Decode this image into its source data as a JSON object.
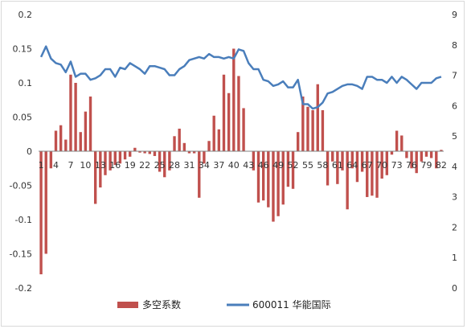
{
  "chart_data": {
    "type": "bar+line",
    "title": "",
    "x": [
      1,
      2,
      3,
      4,
      5,
      6,
      7,
      8,
      9,
      10,
      11,
      12,
      13,
      14,
      15,
      16,
      17,
      18,
      19,
      20,
      21,
      22,
      23,
      24,
      25,
      26,
      27,
      28,
      29,
      30,
      31,
      32,
      33,
      34,
      35,
      36,
      37,
      38,
      39,
      40,
      41,
      42,
      43,
      44,
      45,
      46,
      47,
      48,
      49,
      50,
      51,
      52,
      53,
      54,
      55,
      56,
      57,
      58,
      59,
      60,
      61,
      62,
      63,
      64,
      65,
      66,
      67,
      68,
      69,
      70,
      71,
      72,
      73,
      74,
      75,
      76,
      77,
      78,
      79,
      80,
      81,
      82
    ],
    "x_tick_labels": [
      "1",
      "4",
      "7",
      "10",
      "13",
      "16",
      "19",
      "22",
      "25",
      "28",
      "31",
      "34",
      "37",
      "40",
      "43",
      "46",
      "49",
      "52",
      "55",
      "58",
      "61",
      "64",
      "67",
      "70",
      "73",
      "76",
      "79",
      "82"
    ],
    "y_left": {
      "min": -0.2,
      "max": 0.2,
      "ticks": [
        "-0.2",
        "-0.15",
        "-0.1",
        "-0.05",
        "0",
        "0.05",
        "0.1",
        "0.15",
        "0.2"
      ]
    },
    "y_right": {
      "min": 0,
      "max": 9,
      "ticks": [
        "0",
        "1",
        "2",
        "3",
        "4",
        "5",
        "6",
        "7",
        "8",
        "9"
      ]
    },
    "grid": false,
    "legend_position": "bottom",
    "series": [
      {
        "name": "多空系数",
        "kind": "bar",
        "axis": "left",
        "color": "#c0504d",
        "values": [
          -0.18,
          -0.15,
          -0.025,
          0.03,
          0.038,
          0.017,
          0.112,
          0.1,
          0.028,
          0.058,
          0.08,
          -0.077,
          -0.053,
          -0.035,
          -0.028,
          -0.02,
          -0.018,
          -0.012,
          -0.008,
          0.005,
          -0.002,
          -0.003,
          -0.004,
          -0.007,
          -0.03,
          -0.038,
          -0.028,
          0.022,
          0.033,
          0.012,
          -0.003,
          -0.003,
          -0.068,
          -0.018,
          0.015,
          0.052,
          0.032,
          0.112,
          0.085,
          0.15,
          0.11,
          0.063,
          0,
          -0.028,
          -0.075,
          -0.072,
          -0.082,
          -0.103,
          -0.095,
          -0.078,
          -0.052,
          -0.055,
          0.028,
          0.08,
          0.065,
          0.06,
          0.098,
          0.06,
          -0.05,
          -0.015,
          -0.048,
          -0.028,
          -0.085,
          -0.025,
          -0.045,
          -0.03,
          -0.067,
          -0.065,
          -0.068,
          -0.04,
          -0.035,
          -0.005,
          0.03,
          0.023,
          -0.01,
          -0.025,
          -0.032,
          -0.015,
          -0.008,
          -0.01,
          -0.025,
          0.002
        ]
      },
      {
        "name": "600011 华能国际",
        "kind": "line",
        "axis": "right",
        "color": "#4a7ebb",
        "values": [
          7.6,
          7.95,
          7.55,
          7.4,
          7.35,
          7.1,
          7.45,
          6.95,
          7.05,
          7.05,
          6.85,
          6.9,
          7.0,
          7.2,
          7.2,
          6.95,
          7.25,
          7.2,
          7.4,
          7.3,
          7.2,
          7.05,
          7.3,
          7.3,
          7.25,
          7.2,
          7.0,
          7.0,
          7.2,
          7.3,
          7.5,
          7.55,
          7.6,
          7.55,
          7.7,
          7.6,
          7.6,
          7.55,
          7.6,
          7.55,
          7.85,
          7.8,
          7.4,
          7.2,
          7.2,
          6.85,
          6.8,
          6.65,
          6.7,
          6.8,
          6.6,
          6.6,
          6.85,
          6.05,
          6.05,
          5.9,
          5.95,
          6.1,
          6.4,
          6.45,
          6.55,
          6.65,
          6.7,
          6.7,
          6.65,
          6.55,
          6.95,
          6.95,
          6.85,
          6.85,
          6.75,
          6.95,
          6.75,
          6.95,
          6.85,
          6.7,
          6.55,
          6.75,
          6.75,
          6.75,
          6.9,
          6.95
        ]
      }
    ]
  }
}
